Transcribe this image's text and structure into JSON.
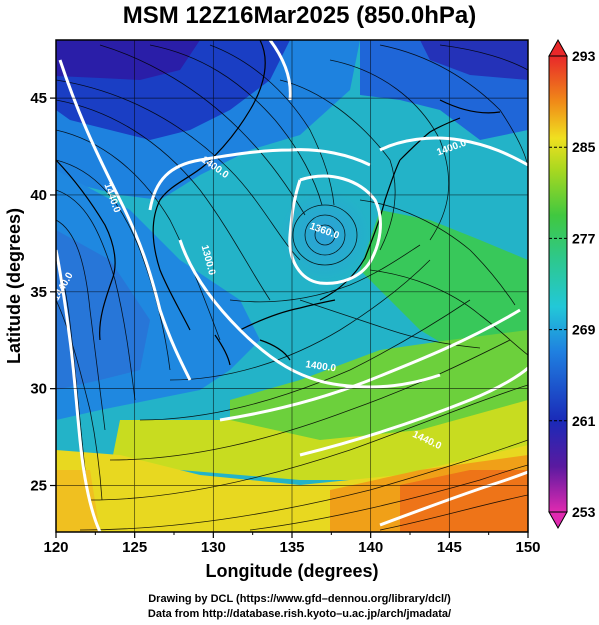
{
  "title": "MSM 12Z16Mar2025 (850.0hPa)",
  "map": {
    "xlabel": "Longitude (degrees)",
    "ylabel": "Latitude  (degrees)",
    "xlim": [
      120,
      150
    ],
    "ylim": [
      22.6,
      48
    ],
    "xticks": [
      "120",
      "125",
      "130",
      "135",
      "140",
      "145",
      "150"
    ],
    "yticks": [
      "25",
      "30",
      "35",
      "40",
      "45"
    ],
    "grid": true,
    "field": "temperature (shaded) with streamlines and geopotential height contours",
    "contour_labels": [
      {
        "text": "1440.0",
        "lon": 123.4,
        "lat": 39.8,
        "rot": 70
      },
      {
        "text": "1440.0",
        "lon": 120.6,
        "lat": 35.2,
        "rot": -60
      },
      {
        "text": "1400.0",
        "lon": 130.0,
        "lat": 41.3,
        "rot": 35
      },
      {
        "text": "1360.0",
        "lon": 137.0,
        "lat": 38.0,
        "rot": 20
      },
      {
        "text": "1300.0",
        "lon": 129.5,
        "lat": 36.6,
        "rot": 75
      },
      {
        "text": "1400.0",
        "lon": 136.8,
        "lat": 31.0,
        "rot": 8
      },
      {
        "text": "1440.0",
        "lon": 143.5,
        "lat": 27.2,
        "rot": 25
      },
      {
        "text": "1400.0",
        "lon": 145.2,
        "lat": 42.3,
        "rot": -20
      }
    ]
  },
  "colorbar": {
    "ticks": [
      "293",
      "285",
      "277",
      "269",
      "261",
      "253"
    ],
    "min": 253,
    "max": 293
  },
  "credits": {
    "line1": "Drawing by DCL (https://www.gfd–dennou.org/library/dcl/)",
    "line2": "Data from http://database.rish.kyoto–u.ac.jp/arch/jmadata/"
  },
  "colors": {
    "cold": "#1a1aa8",
    "cool": "#2aa8e8",
    "mild": "#2bc8a8",
    "warm_green": "#4cc84a",
    "warm": "#e8e020",
    "hot": "#f06c10"
  }
}
